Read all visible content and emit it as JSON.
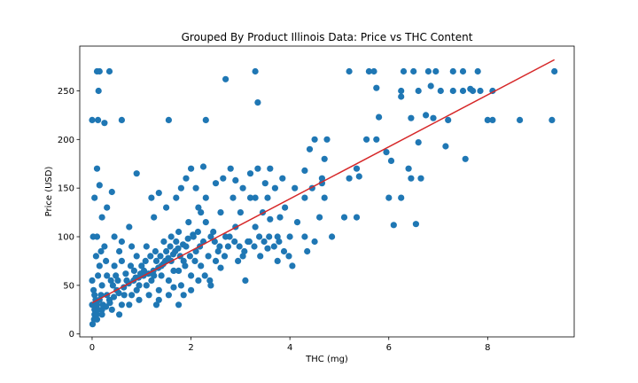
{
  "chart_data": {
    "type": "scatter",
    "title": "Grouped By Product Illinois Data: Price vs THC Content",
    "xlabel": "THC (mg)",
    "ylabel": "Price (USD)",
    "xlim": [
      -0.25,
      9.75
    ],
    "ylim": [
      -3,
      296
    ],
    "xticks": [
      0,
      2,
      4,
      6,
      8
    ],
    "yticks": [
      0,
      50,
      100,
      150,
      200,
      250
    ],
    "grid": false,
    "legend": "none",
    "colors": {
      "points": "#1f77b4",
      "fit_line": "#d62728"
    },
    "fit_line": {
      "x": [
        0.0,
        9.35
      ],
      "y": [
        32,
        282
      ]
    },
    "series": [
      {
        "points": [
          [
            0.1,
            270
          ],
          [
            0.15,
            270
          ],
          [
            0.35,
            270
          ],
          [
            0.13,
            250
          ],
          [
            0.0,
            220
          ],
          [
            0.12,
            220
          ],
          [
            0.25,
            217
          ],
          [
            0.6,
            220
          ],
          [
            1.55,
            220
          ],
          [
            2.3,
            220
          ],
          [
            2.7,
            262
          ],
          [
            3.3,
            270
          ],
          [
            3.35,
            238
          ],
          [
            5.2,
            270
          ],
          [
            5.6,
            270
          ],
          [
            5.7,
            270
          ],
          [
            6.3,
            270
          ],
          [
            6.5,
            270
          ],
          [
            6.8,
            270
          ],
          [
            6.95,
            270
          ],
          [
            7.3,
            270
          ],
          [
            7.5,
            270
          ],
          [
            7.8,
            270
          ],
          [
            9.35,
            270
          ],
          [
            5.75,
            253
          ],
          [
            6.25,
            250
          ],
          [
            6.25,
            244
          ],
          [
            6.6,
            250
          ],
          [
            6.85,
            255
          ],
          [
            7.05,
            250
          ],
          [
            7.3,
            250
          ],
          [
            7.5,
            250
          ],
          [
            7.7,
            250
          ],
          [
            7.85,
            250
          ],
          [
            7.65,
            252
          ],
          [
            8.1,
            250
          ],
          [
            5.8,
            223
          ],
          [
            6.45,
            222
          ],
          [
            6.75,
            225
          ],
          [
            6.9,
            222
          ],
          [
            7.2,
            220
          ],
          [
            8.0,
            220
          ],
          [
            8.1,
            220
          ],
          [
            8.65,
            220
          ],
          [
            9.3,
            220
          ],
          [
            4.5,
            200
          ],
          [
            4.75,
            200
          ],
          [
            5.55,
            200
          ],
          [
            5.75,
            200
          ],
          [
            6.6,
            197
          ],
          [
            7.15,
            193
          ],
          [
            4.4,
            190
          ],
          [
            5.95,
            187
          ],
          [
            7.55,
            180
          ],
          [
            3.6,
            170
          ],
          [
            4.7,
            180
          ],
          [
            5.35,
            170
          ],
          [
            6.05,
            178
          ],
          [
            6.4,
            170
          ],
          [
            6.45,
            160
          ],
          [
            6.65,
            160
          ],
          [
            5.2,
            160
          ],
          [
            5.4,
            162
          ],
          [
            4.65,
            160
          ],
          [
            4.3,
            168
          ],
          [
            6.0,
            140
          ],
          [
            6.25,
            140
          ],
          [
            6.1,
            112
          ],
          [
            6.55,
            113
          ],
          [
            5.35,
            120
          ],
          [
            5.1,
            120
          ],
          [
            4.85,
            100
          ],
          [
            0.1,
            170
          ],
          [
            0.15,
            153
          ],
          [
            0.05,
            140
          ],
          [
            0.2,
            120
          ],
          [
            0.1,
            100
          ],
          [
            0.3,
            130
          ],
          [
            0.4,
            146
          ],
          [
            0.9,
            165
          ],
          [
            1.2,
            140
          ],
          [
            1.25,
            120
          ],
          [
            1.35,
            145
          ],
          [
            1.5,
            130
          ],
          [
            1.7,
            140
          ],
          [
            1.8,
            150
          ],
          [
            1.9,
            160
          ],
          [
            2.0,
            170
          ],
          [
            2.25,
            172
          ],
          [
            2.1,
            150
          ],
          [
            2.3,
            140
          ],
          [
            2.2,
            125
          ],
          [
            2.5,
            155
          ],
          [
            2.65,
            160
          ],
          [
            2.8,
            170
          ],
          [
            2.9,
            158
          ],
          [
            3.05,
            150
          ],
          [
            3.2,
            165
          ],
          [
            3.35,
            170
          ],
          [
            3.5,
            155
          ],
          [
            3.7,
            150
          ],
          [
            3.85,
            160
          ],
          [
            3.3,
            140
          ],
          [
            3.55,
            140
          ],
          [
            3.9,
            130
          ],
          [
            4.1,
            150
          ],
          [
            4.3,
            140
          ],
          [
            4.45,
            150
          ],
          [
            4.65,
            155
          ],
          [
            4.7,
            140
          ],
          [
            3.8,
            120
          ],
          [
            3.6,
            118
          ],
          [
            4.0,
            100
          ],
          [
            4.3,
            100
          ],
          [
            3.3,
            110
          ],
          [
            3.15,
            95
          ],
          [
            3.05,
            80
          ],
          [
            3.1,
            55
          ],
          [
            3.55,
            88
          ],
          [
            3.75,
            75
          ],
          [
            4.05,
            70
          ],
          [
            4.35,
            85
          ],
          [
            4.5,
            95
          ],
          [
            2.7,
            100
          ],
          [
            2.55,
            85
          ],
          [
            2.45,
            105
          ],
          [
            2.3,
            115
          ],
          [
            2.15,
            130
          ],
          [
            2.35,
            80
          ],
          [
            2.6,
            68
          ],
          [
            2.0,
            60
          ],
          [
            1.8,
            50
          ],
          [
            1.85,
            40
          ],
          [
            1.65,
            48
          ],
          [
            1.4,
            60
          ],
          [
            1.3,
            75
          ],
          [
            1.1,
            90
          ],
          [
            0.9,
            80
          ],
          [
            0.75,
            110
          ],
          [
            0.55,
            85
          ],
          [
            0.45,
            70
          ],
          [
            0.3,
            60
          ],
          [
            0.2,
            50
          ],
          [
            0.05,
            40
          ],
          [
            0.0,
            30
          ],
          [
            0.05,
            20
          ],
          [
            0.1,
            15
          ],
          [
            0.2,
            25
          ],
          [
            0.35,
            35
          ],
          [
            0.5,
            45
          ],
          [
            0.6,
            30
          ],
          [
            0.7,
            55
          ],
          [
            0.8,
            40
          ],
          [
            0.95,
            50
          ],
          [
            1.05,
            65
          ],
          [
            1.2,
            55
          ],
          [
            1.35,
            45
          ],
          [
            1.5,
            85
          ],
          [
            1.6,
            75
          ],
          [
            1.7,
            95
          ],
          [
            1.9,
            90
          ],
          [
            2.05,
            100
          ],
          [
            2.2,
            70
          ],
          [
            0.02,
            100
          ],
          [
            0.08,
            80
          ],
          [
            0.15,
            70
          ],
          [
            0.25,
            90
          ],
          [
            0.4,
            25
          ],
          [
            0.55,
            20
          ],
          [
            0.75,
            30
          ],
          [
            0.95,
            35
          ],
          [
            1.15,
            40
          ],
          [
            1.3,
            30
          ],
          [
            0.12,
            60
          ],
          [
            0.6,
            75
          ],
          [
            0.85,
            65
          ],
          [
            1.0,
            70
          ],
          [
            1.45,
            95
          ],
          [
            1.75,
            105
          ],
          [
            1.95,
            115
          ],
          [
            0.0,
            55
          ],
          [
            0.03,
            45
          ],
          [
            0.07,
            35
          ],
          [
            0.18,
            40
          ],
          [
            2.5,
            75
          ],
          [
            2.75,
            90
          ],
          [
            2.95,
            75
          ],
          [
            3.4,
            80
          ],
          [
            3.2,
            140
          ],
          [
            2.85,
            140
          ],
          [
            2.4,
            100
          ],
          [
            0.45,
            100
          ],
          [
            0.6,
            95
          ],
          [
            0.8,
            90
          ],
          [
            1.6,
            100
          ],
          [
            1.75,
            65
          ],
          [
            2.6,
            125
          ],
          [
            2.9,
            110
          ],
          [
            3.0,
            125
          ],
          [
            3.45,
            125
          ],
          [
            3.75,
            100
          ],
          [
            4.15,
            115
          ],
          [
            4.6,
            120
          ],
          [
            0.18,
            85
          ],
          [
            0.28,
            75
          ],
          [
            0.38,
            55
          ],
          [
            0.48,
            60
          ],
          [
            0.65,
            40
          ],
          [
            0.9,
            45
          ],
          [
            1.1,
            50
          ],
          [
            1.25,
            60
          ],
          [
            1.4,
            70
          ],
          [
            1.55,
            55
          ],
          [
            1.65,
            65
          ],
          [
            1.85,
            75
          ],
          [
            2.1,
            85
          ],
          [
            2.25,
            95
          ],
          [
            0.05,
            25
          ],
          [
            0.1,
            30
          ],
          [
            0.15,
            35
          ],
          [
            0.22,
            30
          ],
          [
            0.3,
            40
          ],
          [
            0.42,
            50
          ],
          [
            0.52,
            55
          ],
          [
            0.68,
            62
          ],
          [
            0.78,
            70
          ],
          [
            0.88,
            58
          ],
          [
            0.98,
            62
          ],
          [
            1.08,
            75
          ],
          [
            1.18,
            80
          ],
          [
            1.28,
            85
          ],
          [
            1.38,
            80
          ],
          [
            1.48,
            75
          ],
          [
            1.58,
            90
          ],
          [
            1.68,
            85
          ],
          [
            1.78,
            80
          ],
          [
            1.88,
            70
          ],
          [
            1.98,
            80
          ],
          [
            2.08,
            75
          ],
          [
            2.18,
            90
          ],
          [
            2.28,
            60
          ],
          [
            2.38,
            55
          ],
          [
            2.48,
            95
          ],
          [
            2.58,
            90
          ],
          [
            2.68,
            80
          ],
          [
            2.78,
            100
          ],
          [
            2.88,
            95
          ],
          [
            2.98,
            90
          ],
          [
            3.08,
            85
          ],
          [
            3.18,
            95
          ],
          [
            3.28,
            90
          ],
          [
            3.38,
            100
          ],
          [
            3.48,
            95
          ],
          [
            3.58,
            100
          ],
          [
            3.68,
            90
          ],
          [
            3.78,
            95
          ],
          [
            3.88,
            85
          ],
          [
            3.98,
            80
          ],
          [
            0.01,
            10
          ],
          [
            0.04,
            15
          ],
          [
            0.09,
            20
          ],
          [
            0.12,
            25
          ],
          [
            0.2,
            20
          ],
          [
            0.28,
            28
          ],
          [
            0.36,
            32
          ],
          [
            0.44,
            38
          ],
          [
            0.54,
            42
          ],
          [
            0.64,
            48
          ],
          [
            0.74,
            52
          ],
          [
            0.84,
            55
          ],
          [
            0.94,
            58
          ],
          [
            1.04,
            60
          ],
          [
            1.14,
            62
          ],
          [
            1.24,
            65
          ],
          [
            1.34,
            68
          ],
          [
            1.44,
            72
          ],
          [
            1.54,
            78
          ],
          [
            1.64,
            82
          ],
          [
            1.74,
            88
          ],
          [
            1.84,
            92
          ],
          [
            1.94,
            98
          ],
          [
            2.04,
            102
          ],
          [
            2.14,
            105
          ],
          [
            1.35,
            35
          ],
          [
            1.55,
            40
          ],
          [
            1.75,
            30
          ],
          [
            2.0,
            45
          ],
          [
            2.15,
            55
          ],
          [
            2.4,
            50
          ]
        ]
      }
    ]
  }
}
